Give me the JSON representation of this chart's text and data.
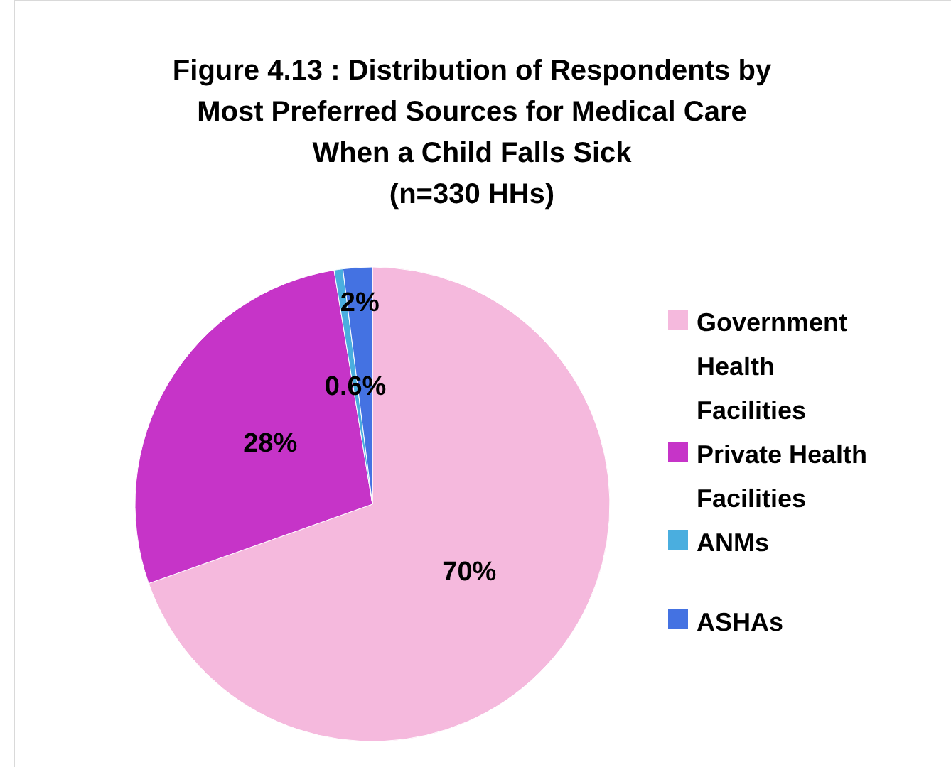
{
  "chart_data": {
    "type": "pie",
    "title": "Figure 4.13 : Distribution of Respondents by Most Preferred Sources for Medical Care When a Child Falls Sick (n=330 HHs)",
    "categories": [
      "Government Health Facilities",
      "Private Health Facilities",
      "ANMs",
      "ASHAs"
    ],
    "values": [
      70,
      28,
      0.6,
      2
    ],
    "colors": [
      "#f5b9dd",
      "#c634c8",
      "#4aaedf",
      "#4472e2"
    ],
    "value_labels": [
      "70%",
      "28%",
      "0.6%",
      "2%"
    ],
    "legend": "right"
  }
}
